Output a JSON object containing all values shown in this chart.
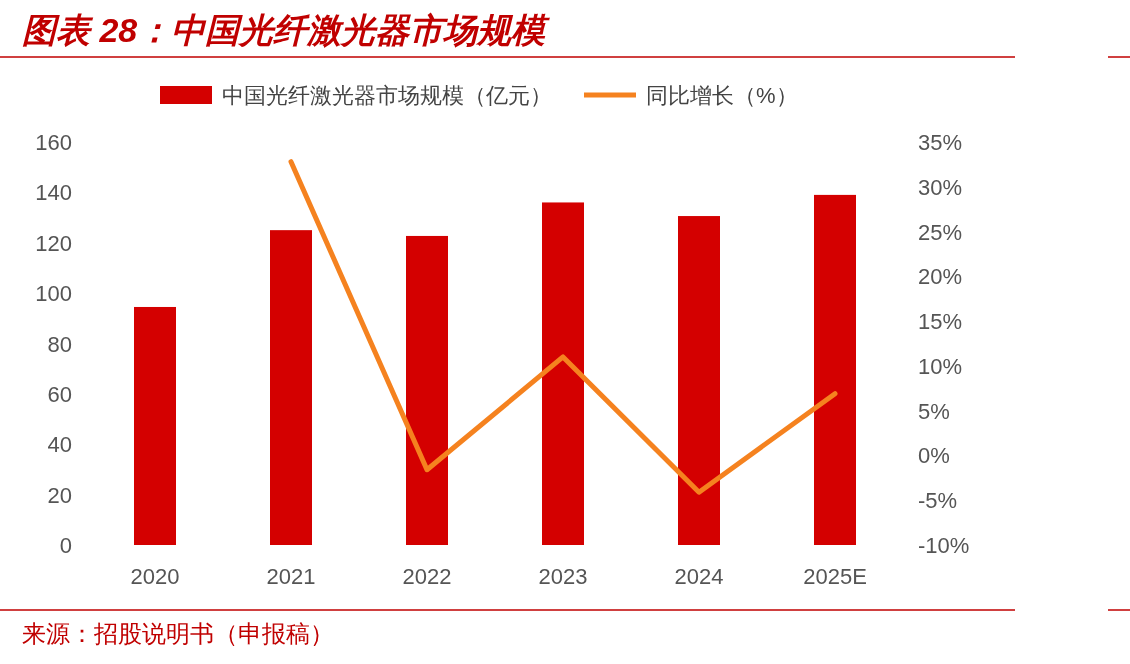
{
  "chart_data": {
    "type": "bar",
    "title": "图表 28：中国光纤激光器市场规模",
    "categories": [
      "2020",
      "2021",
      "2022",
      "2023",
      "2024",
      "2025E"
    ],
    "series": [
      {
        "name": "中国光纤激光器市场规模（亿元）",
        "color": "#d40000",
        "values": [
          94.5,
          125,
          122.7,
          136,
          130.6,
          139
        ]
      },
      {
        "name": "同比增长（%）",
        "type": "line",
        "axis": "y2",
        "color": "#f5821f",
        "values": [
          null,
          32.8,
          -1.6,
          11.0,
          -4.1,
          6.9
        ]
      }
    ],
    "ylim": [
      0,
      160
    ],
    "yticks": [
      0,
      20,
      40,
      60,
      80,
      100,
      120,
      140,
      160
    ],
    "y2lim": [
      -10,
      35
    ],
    "y2ticks": [
      {
        "value": -10,
        "label": "-10%"
      },
      {
        "value": -5,
        "label": "-5%"
      },
      {
        "value": 0,
        "label": "0%"
      },
      {
        "value": 5,
        "label": "5%"
      },
      {
        "value": 10,
        "label": "10%"
      },
      {
        "value": 15,
        "label": "15%"
      },
      {
        "value": 20,
        "label": "20%"
      },
      {
        "value": 25,
        "label": "25%"
      },
      {
        "value": 30,
        "label": "30%"
      },
      {
        "value": 35,
        "label": "35%"
      }
    ],
    "legend": "top",
    "annotations": [
      "来源：招股说明书（申报稿）"
    ]
  }
}
